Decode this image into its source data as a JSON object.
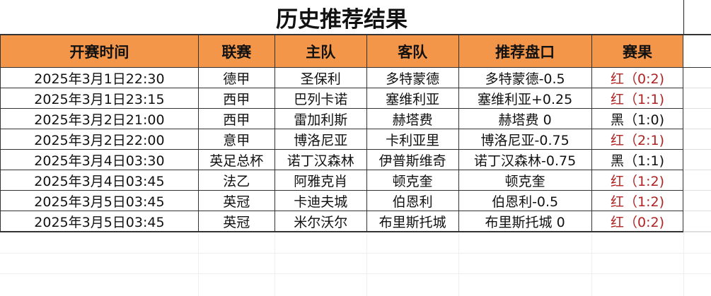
{
  "title": "历史推荐结果",
  "headers": [
    "开赛时间",
    "联赛",
    "主队",
    "客队",
    "推荐盘口",
    "赛果"
  ],
  "rows": [
    [
      "2025年3月1日22:30",
      "德甲",
      "圣保利",
      "多特蒙德",
      "多特蒙德-0.5",
      "红（0:2)"
    ],
    [
      "2025年3月1日23:15",
      "西甲",
      "巴列卡诺",
      "塞维利亚",
      "塞维利亚+0.25",
      "红（1:1)"
    ],
    [
      "2025年3月2日21:00",
      "西甲",
      "雷加利斯",
      "赫塔费",
      "赫塔费 0",
      "黑（1:0)"
    ],
    [
      "2025年3月2日22:00",
      "意甲",
      "博洛尼亚",
      "卡利亚里",
      "博洛尼亚-0.75",
      "红（2:1)"
    ],
    [
      "2025年3月4日03:30",
      "英足总杯",
      "诺丁汉森林",
      "伊普斯维奇",
      "诺丁汉森林-0.75",
      "黑（1:1)"
    ],
    [
      "2025年3月4日03:45",
      "法乙",
      "阿雅克肖",
      "顿克奎",
      "顿克奎",
      "红（1:2)"
    ],
    [
      "2025年3月5日03:45",
      "英冠",
      "卡迪夫城",
      "伯恩利",
      "伯恩利-0.5",
      "红（1:2)"
    ],
    [
      "2025年3月5日03:45",
      "英冠",
      "米尔沃尔",
      "布里斯托城",
      "布里斯托城 0",
      "红（0:2)"
    ]
  ],
  "colors": {
    "header_bg": "#f4964a",
    "win": "#b22222",
    "loss": "#111111"
  }
}
